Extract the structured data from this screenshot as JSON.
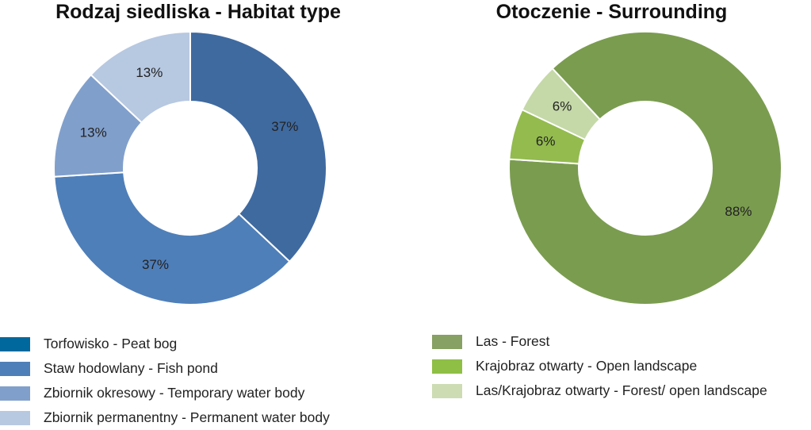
{
  "chart_data": [
    {
      "type": "pie",
      "variant": "donut",
      "title": "Rodzaj siedliska - Habitat type",
      "categories": [
        "Torfowisko - Peat bog",
        "Staw hodowlany - Fish pond",
        "Zbiornik okresowy - Temporary water body",
        "Zbiornik permanentny - Permanent water body"
      ],
      "values": [
        37,
        37,
        13,
        13
      ],
      "labels": [
        "37%",
        "37%",
        "13%",
        "13%"
      ],
      "colors": [
        "#3f6aa0",
        "#4f7fb9",
        "#819fcb",
        "#b7c8e1"
      ],
      "legend_colors": [
        "#00689d",
        "#4f7fb9",
        "#819fcb",
        "#b7c8e1"
      ],
      "legend": "bottom"
    },
    {
      "type": "pie",
      "variant": "donut",
      "title": "Otoczenie - Surrounding",
      "categories": [
        "Las - Forest",
        "Krajobraz otwarty - Open landscape",
        "Las/Krajobraz otwarty - Forest/ open landscape"
      ],
      "values": [
        88,
        6,
        6
      ],
      "labels": [
        "88%",
        "6%",
        "6%"
      ],
      "colors": [
        "#7a9c4f",
        "#93bb4e",
        "#c5d9a8"
      ],
      "legend_colors": [
        "#87a063",
        "#8fbf45",
        "#cddcb3"
      ],
      "legend": "bottom"
    }
  ]
}
